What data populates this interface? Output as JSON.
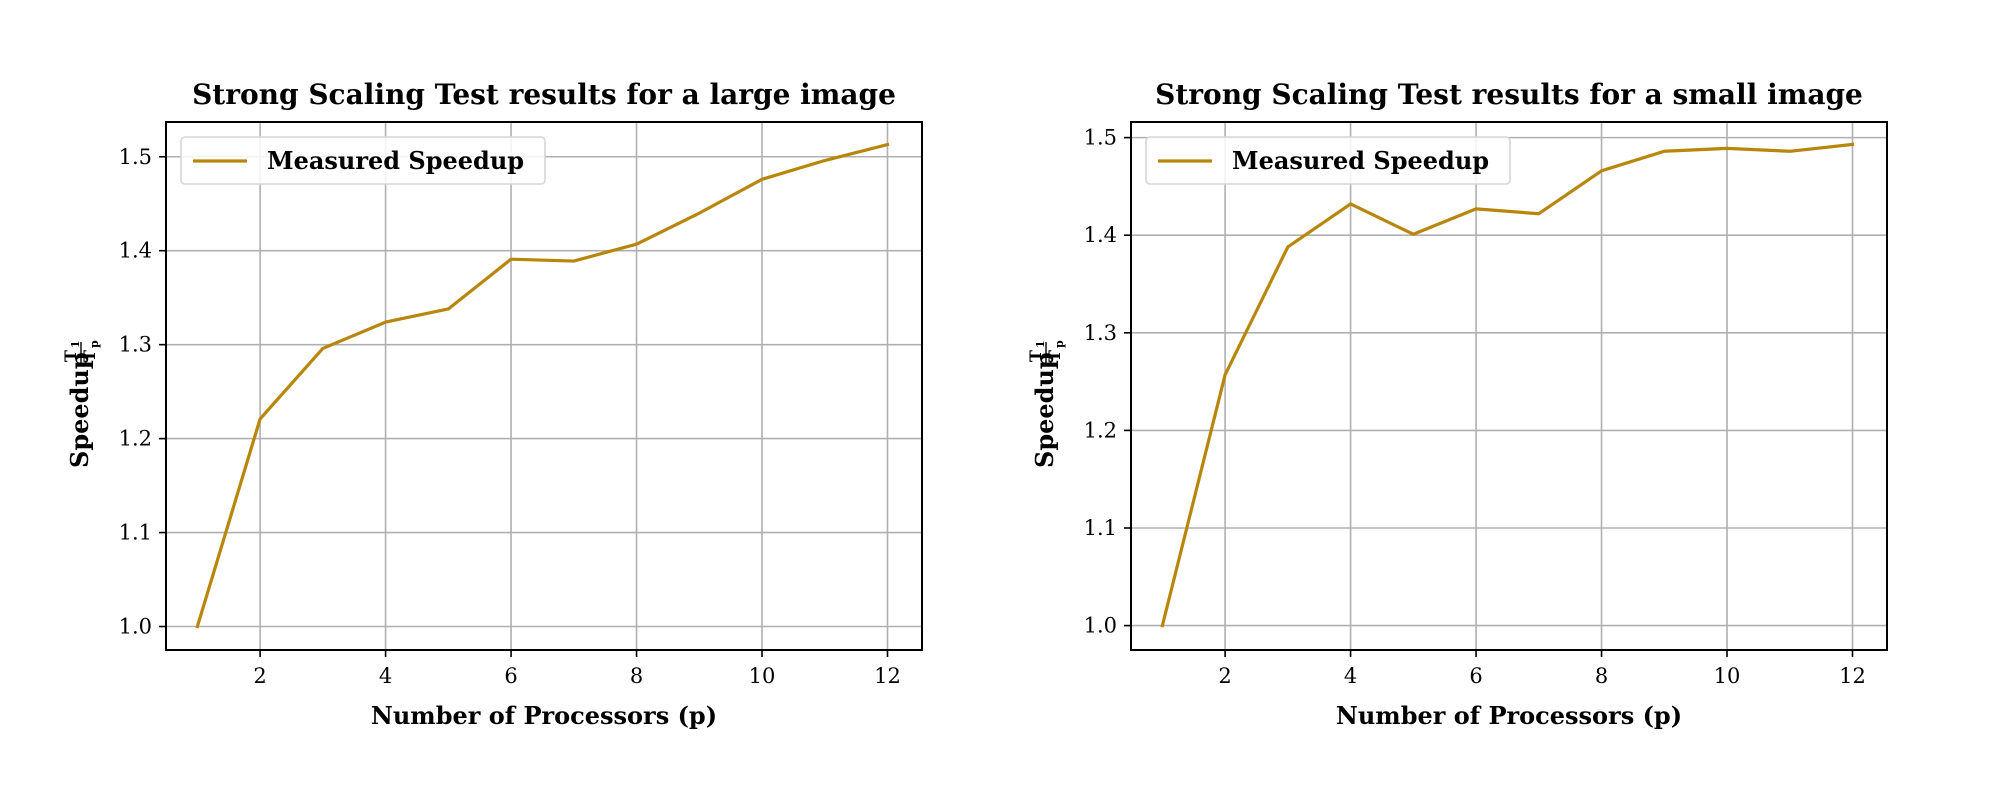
{
  "chart_data": [
    {
      "type": "line",
      "title": "Strong Scaling Test results for a large image",
      "xlabel": "Number of Processors (p)",
      "ylabel": "Speedup",
      "ylabel_fraction": {
        "numerator": "T",
        "numerator_sub": "1",
        "denominator": "T",
        "denominator_sub": "p"
      },
      "xlim": [
        0.5,
        12.55
      ],
      "ylim": [
        0.975,
        1.537
      ],
      "xticks": [
        2,
        4,
        6,
        8,
        10,
        12
      ],
      "yticks": [
        1.0,
        1.1,
        1.2,
        1.3,
        1.4,
        1.5
      ],
      "xtick_labels": [
        "2",
        "4",
        "6",
        "8",
        "10",
        "12"
      ],
      "ytick_labels": [
        "1.0",
        "1.1",
        "1.2",
        "1.3",
        "1.4",
        "1.5"
      ],
      "grid": true,
      "legend_position": "upper-left",
      "series": [
        {
          "name": "Measured Speedup",
          "color": "#b8860b",
          "x": [
            1,
            2,
            3,
            4,
            5,
            6,
            7,
            8,
            9,
            10,
            11,
            12
          ],
          "values": [
            1.0,
            1.221,
            1.296,
            1.324,
            1.338,
            1.391,
            1.389,
            1.407,
            1.44,
            1.476,
            1.496,
            1.513
          ]
        }
      ]
    },
    {
      "type": "line",
      "title": "Strong Scaling Test results for a small image",
      "xlabel": "Number of Processors (p)",
      "ylabel": "Speedup",
      "ylabel_fraction": {
        "numerator": "T",
        "numerator_sub": "1",
        "denominator": "T",
        "denominator_sub": "p"
      },
      "xlim": [
        0.5,
        12.55
      ],
      "ylim": [
        0.975,
        1.516
      ],
      "xticks": [
        2,
        4,
        6,
        8,
        10,
        12
      ],
      "yticks": [
        1.0,
        1.1,
        1.2,
        1.3,
        1.4,
        1.5
      ],
      "xtick_labels": [
        "2",
        "4",
        "6",
        "8",
        "10",
        "12"
      ],
      "ytick_labels": [
        "1.0",
        "1.1",
        "1.2",
        "1.3",
        "1.4",
        "1.5"
      ],
      "grid": true,
      "legend_position": "upper-left",
      "series": [
        {
          "name": "Measured Speedup",
          "color": "#b8860b",
          "x": [
            1,
            2,
            3,
            4,
            5,
            6,
            7,
            8,
            9,
            10,
            11,
            12
          ],
          "values": [
            1.0,
            1.257,
            1.388,
            1.432,
            1.401,
            1.427,
            1.422,
            1.466,
            1.486,
            1.489,
            1.486,
            1.493
          ]
        }
      ]
    }
  ]
}
